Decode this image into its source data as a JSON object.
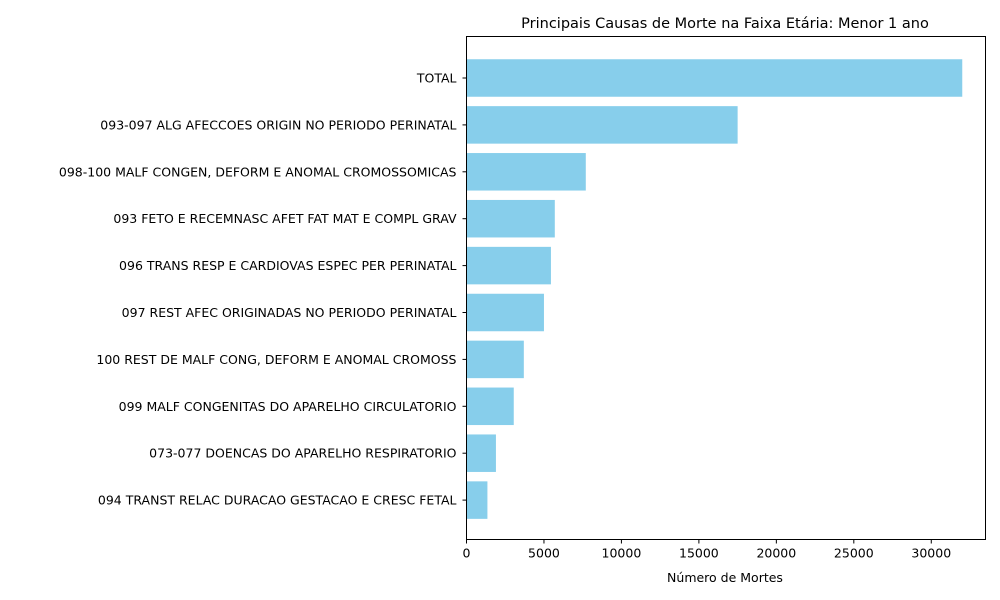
{
  "chart_data": {
    "type": "bar",
    "orientation": "horizontal",
    "title": "Principais Causas de Morte na Faixa Etária: Menor 1 ano",
    "xlabel": "Número de Mortes",
    "ylabel": "",
    "xlim": [
      0,
      33500
    ],
    "xticks": [
      0,
      5000,
      10000,
      15000,
      20000,
      25000,
      30000
    ],
    "xtick_labels": [
      "0",
      "5000",
      "10000",
      "15000",
      "20000",
      "25000",
      "30000"
    ],
    "grid": false,
    "bar_color": "#87ceeb",
    "categories": [
      "TOTAL",
      "093-097 ALG AFECCOES ORIGIN NO PERIODO PERINATAL",
      "098-100 MALF CONGEN, DEFORM E ANOMAL CROMOSSOMICAS",
      "093 FETO E RECEMNASC AFET FAT MAT E COMPL GRAV",
      "096 TRANS RESP E CARDIOVAS ESPEC PER PERINATAL",
      "097 REST AFEC ORIGINADAS NO PERIODO PERINATAL",
      "100 REST DE MALF CONG, DEFORM E ANOMAL CROMOSS",
      "099 MALF CONGENITAS DO APARELHO CIRCULATORIO",
      "073-077 DOENCAS DO APARELHO RESPIRATORIO",
      "094 TRANST RELAC DURACAO GESTACAO E CRESC FETAL"
    ],
    "values": [
      32000,
      17500,
      7700,
      5700,
      5450,
      5000,
      3700,
      3050,
      1900,
      1350
    ]
  }
}
